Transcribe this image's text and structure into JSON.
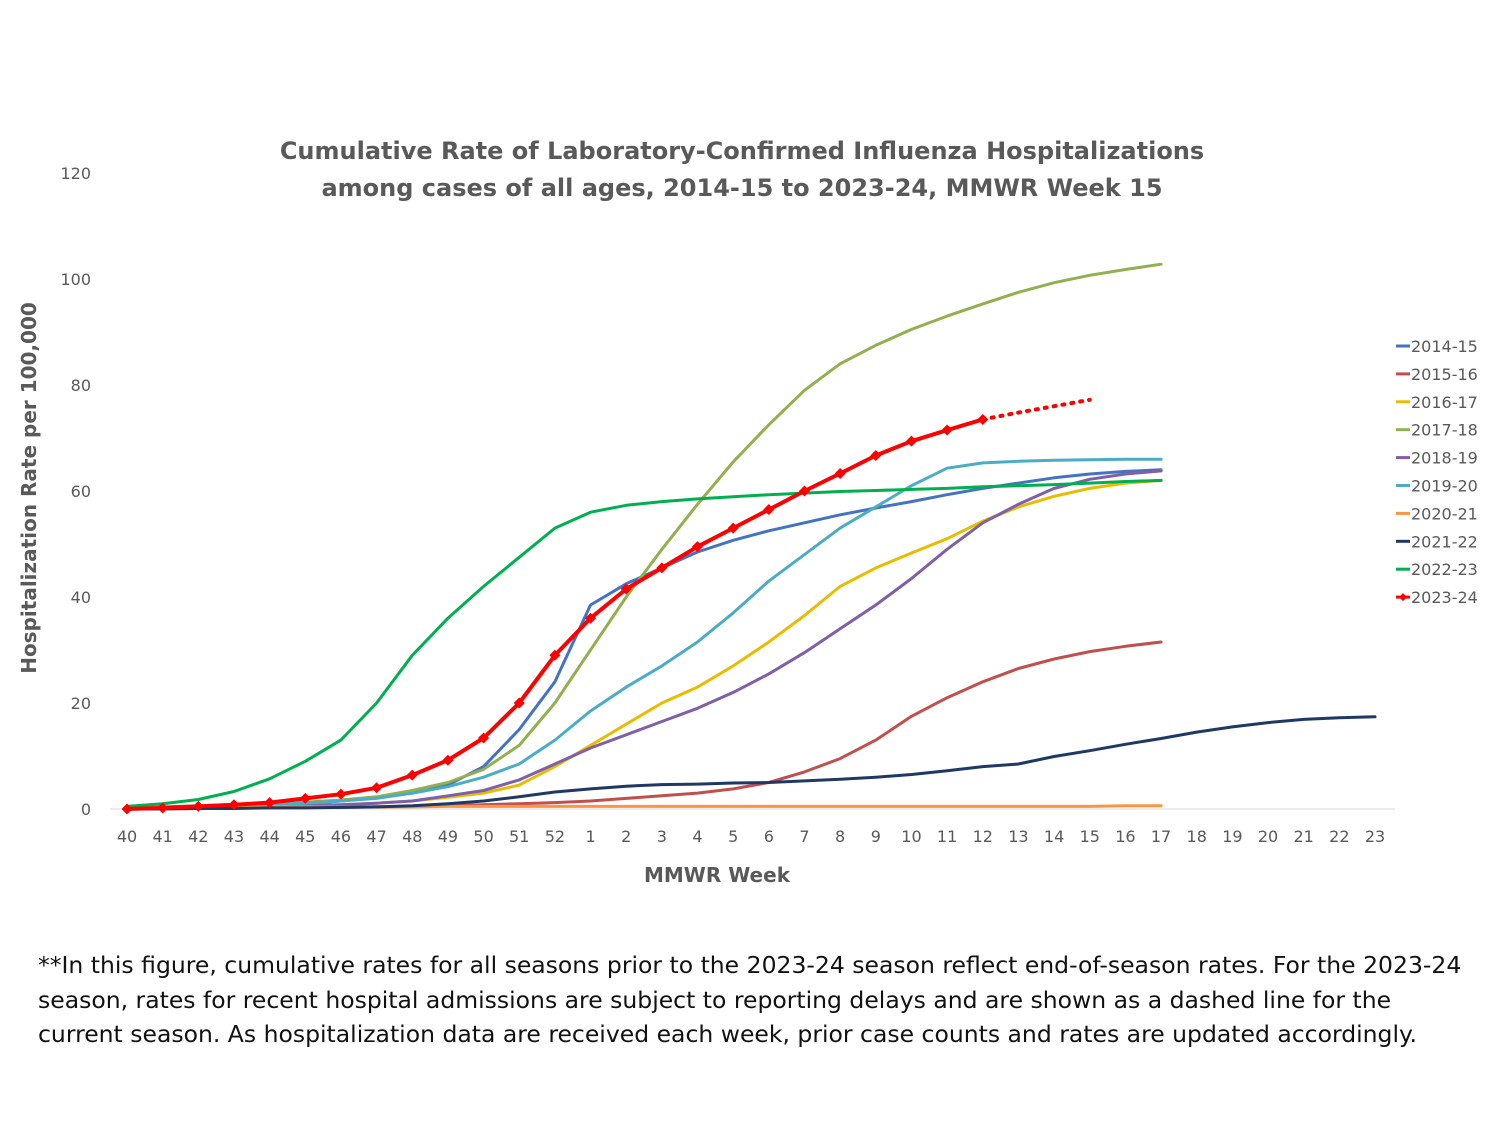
{
  "chart_data": {
    "type": "line",
    "title_lines": [
      "Cumulative Rate of Laboratory-Confirmed Influenza Hospitalizations",
      "among cases of all ages, 2014-15 to 2023-24, MMWR Week 15"
    ],
    "xlabel": "MMWR Week",
    "ylabel": "Hospitalization Rate per 100,000",
    "ylim": [
      0,
      120
    ],
    "yticks": [
      0,
      20,
      40,
      60,
      80,
      100,
      120
    ],
    "categories": [
      "40",
      "41",
      "42",
      "43",
      "44",
      "45",
      "46",
      "47",
      "48",
      "49",
      "50",
      "51",
      "52",
      "1",
      "2",
      "3",
      "4",
      "5",
      "6",
      "7",
      "8",
      "9",
      "10",
      "11",
      "12",
      "13",
      "14",
      "15",
      "16",
      "17",
      "18",
      "19",
      "20",
      "21",
      "22",
      "23"
    ],
    "grid": false,
    "legend_position": "right",
    "series": [
      {
        "name": "2014-15",
        "color": "#4472C4",
        "values": [
          0,
          0.1,
          0.2,
          0.4,
          0.7,
          1,
          1.5,
          2.2,
          3,
          4.5,
          8,
          15,
          24,
          38.5,
          42.5,
          45.5,
          48.5,
          50.7,
          52.5,
          54,
          55.5,
          56.8,
          58,
          59.3,
          60.5,
          61.5,
          62.5,
          63.2,
          63.7,
          64,
          null,
          null,
          null,
          null,
          null,
          null
        ]
      },
      {
        "name": "2015-16",
        "color": "#C0504D",
        "values": [
          0,
          0.1,
          0.1,
          0.2,
          0.2,
          0.3,
          0.3,
          0.4,
          0.5,
          0.6,
          0.8,
          1,
          1.2,
          1.5,
          2,
          2.5,
          3,
          3.8,
          5,
          7,
          9.5,
          13,
          17.5,
          21,
          24,
          26.5,
          28.3,
          29.7,
          30.7,
          31.5,
          null,
          null,
          null,
          null,
          null,
          null
        ]
      },
      {
        "name": "2016-17",
        "color": "#E8BC00",
        "values": [
          0,
          0.1,
          0.2,
          0.3,
          0.4,
          0.6,
          0.8,
          1.1,
          1.5,
          2.2,
          3,
          4.5,
          8,
          12,
          16,
          20,
          23,
          27,
          31.5,
          36.5,
          42,
          45.5,
          48.3,
          51,
          54.3,
          57,
          59,
          60.5,
          61.5,
          62,
          null,
          null,
          null,
          null,
          null,
          null
        ]
      },
      {
        "name": "2017-18",
        "color": "#92B04F",
        "values": [
          0.3,
          0.4,
          0.6,
          0.8,
          1,
          1.3,
          1.7,
          2.3,
          3.5,
          5,
          7.5,
          12,
          20,
          30,
          40,
          49,
          57.5,
          65.5,
          72.5,
          79,
          84,
          87.5,
          90.5,
          93,
          95.3,
          97.5,
          99.3,
          100.7,
          101.8,
          102.8,
          null,
          null,
          null,
          null,
          null,
          null
        ]
      },
      {
        "name": "2018-19",
        "color": "#7F5FA8",
        "values": [
          0,
          0.1,
          0.2,
          0.3,
          0.4,
          0.6,
          0.8,
          1.1,
          1.5,
          2.5,
          3.5,
          5.5,
          8.5,
          11.5,
          14,
          16.5,
          19,
          22,
          25.5,
          29.5,
          34,
          38.5,
          43.5,
          49,
          54,
          57.5,
          60.5,
          62.2,
          63.2,
          63.8,
          null,
          null,
          null,
          null,
          null,
          null
        ]
      },
      {
        "name": "2019-20",
        "color": "#4BACC6",
        "values": [
          0,
          0.1,
          0.3,
          0.5,
          0.8,
          1.1,
          1.5,
          2,
          3,
          4.2,
          6,
          8.5,
          13,
          18.5,
          23,
          27,
          31.5,
          37,
          43,
          48,
          53,
          57,
          61,
          64.3,
          65.3,
          65.6,
          65.8,
          65.9,
          66,
          66,
          null,
          null,
          null,
          null,
          null,
          null
        ]
      },
      {
        "name": "2020-21",
        "color": "#F79646",
        "values": [
          0.3,
          0.3,
          0.3,
          0.4,
          0.4,
          0.4,
          0.4,
          0.4,
          0.4,
          0.5,
          0.5,
          0.5,
          0.5,
          0.5,
          0.5,
          0.5,
          0.5,
          0.5,
          0.5,
          0.5,
          0.5,
          0.5,
          0.5,
          0.5,
          0.5,
          0.5,
          0.5,
          0.5,
          0.6,
          0.6,
          null,
          null,
          null,
          null,
          null,
          null
        ]
      },
      {
        "name": "2021-22",
        "color": "#1F3864",
        "values": [
          0,
          0,
          0.1,
          0.1,
          0.2,
          0.2,
          0.3,
          0.4,
          0.6,
          1,
          1.5,
          2.3,
          3.2,
          3.8,
          4.3,
          4.6,
          4.7,
          4.9,
          5,
          5.3,
          5.6,
          6,
          6.5,
          7.2,
          8,
          8.5,
          9.9,
          11,
          12.2,
          13.3,
          14.5,
          15.5,
          16.3,
          16.9,
          17.2,
          17.4
        ]
      },
      {
        "name": "2022-23",
        "color": "#00B050",
        "values": [
          0.5,
          1,
          1.8,
          3.3,
          5.7,
          9,
          13,
          20,
          29,
          36,
          42,
          47.5,
          53,
          56,
          57.3,
          58,
          58.5,
          58.9,
          59.3,
          59.6,
          59.9,
          60.1,
          60.3,
          60.5,
          60.8,
          61,
          61.2,
          61.5,
          61.8,
          62,
          null,
          null,
          null,
          null,
          null,
          null
        ]
      },
      {
        "name": "2023-24",
        "color": "#FF0000",
        "markers": true,
        "values": [
          0,
          0.2,
          0.5,
          0.8,
          1.2,
          2,
          2.8,
          4,
          6.4,
          9.2,
          13.4,
          20,
          29,
          36,
          41.5,
          45.5,
          49.5,
          53,
          56.5,
          60,
          63.3,
          66.7,
          69.4,
          71.5,
          73.5,
          null,
          null,
          null,
          null,
          null,
          null,
          null,
          null,
          null,
          null,
          null
        ],
        "preliminary_dashed": [
          null,
          null,
          null,
          null,
          null,
          null,
          null,
          null,
          null,
          null,
          null,
          null,
          null,
          null,
          null,
          null,
          null,
          null,
          null,
          null,
          null,
          null,
          null,
          null,
          73.5,
          74.8,
          76,
          77.2,
          null,
          null,
          null,
          null,
          null,
          null,
          null,
          null
        ]
      }
    ]
  },
  "footnote": "**In this figure, cumulative rates for all seasons prior to the 2023-24 season reflect end-of-season rates. For the 2023-24 season, rates for recent hospital admissions are subject to reporting delays and are shown as a dashed line for the current season. As hospitalization data are received each week, prior case counts and rates are updated accordingly."
}
